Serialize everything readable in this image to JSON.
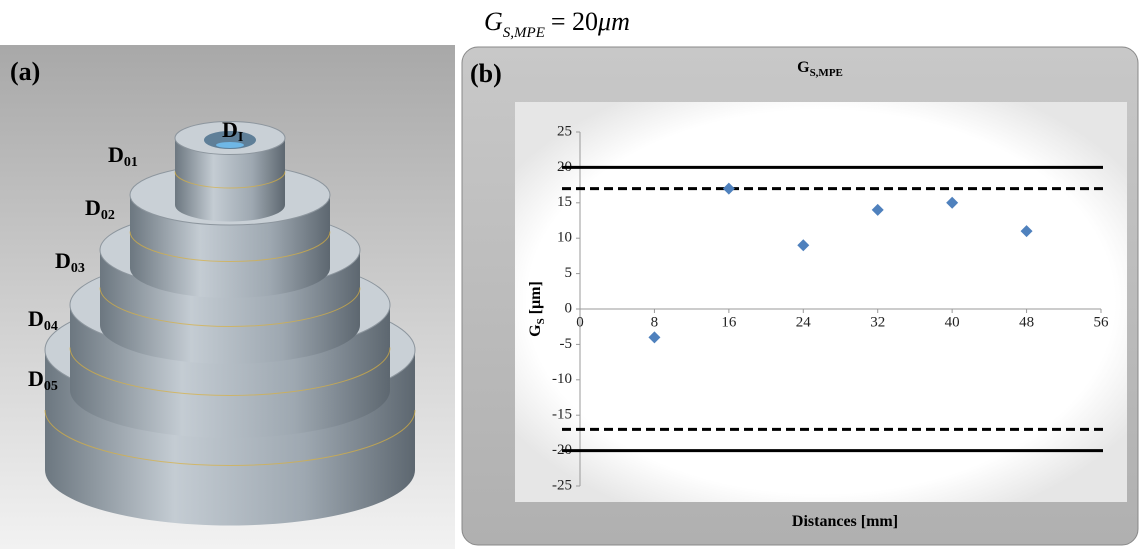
{
  "equation": {
    "symbol": "G",
    "subscript": "S,MPE",
    "rest": "= 20",
    "unit": "μm"
  },
  "panel_a": {
    "label": "(a)",
    "annotations": [
      {
        "text": "D",
        "sub": "I"
      },
      {
        "text": "D",
        "sub": "01"
      },
      {
        "text": "D",
        "sub": "02"
      },
      {
        "text": "D",
        "sub": "03"
      },
      {
        "text": "D",
        "sub": "04"
      },
      {
        "text": "D",
        "sub": "05"
      }
    ]
  },
  "chart_data": {
    "type": "scatter",
    "panel_label": "(b)",
    "title": "G",
    "title_subscript": "S,MPE",
    "x_label": "Distances [mm]",
    "y_label": "G",
    "y_label_subscript": "S",
    "y_label_unit": "[μm]",
    "x": [
      8,
      16,
      24,
      32,
      40,
      48
    ],
    "values": [
      -4,
      17,
      9,
      14,
      15,
      11
    ],
    "color": "#4f81bd",
    "xlim": [
      0,
      56
    ],
    "xticks": [
      0,
      8,
      16,
      24,
      32,
      40,
      48,
      56
    ],
    "ylim": [
      -25,
      25
    ],
    "yticks": [
      -25,
      -20,
      -15,
      -10,
      -5,
      0,
      5,
      10,
      15,
      20,
      25
    ],
    "reference_lines": [
      {
        "value": 20,
        "style": "solid"
      },
      {
        "value": 17,
        "style": "dashed"
      },
      {
        "value": -17,
        "style": "dashed"
      },
      {
        "value": -20,
        "style": "solid"
      }
    ]
  }
}
